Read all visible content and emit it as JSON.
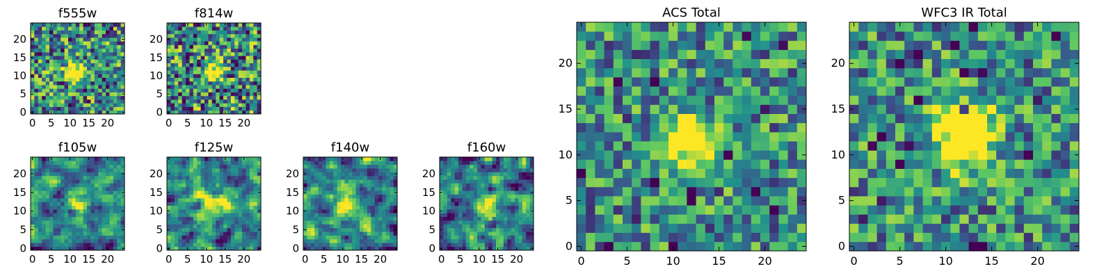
{
  "chart_data": [
    {
      "type": "heatmap",
      "title": "f555w",
      "xticks": [
        "0",
        "5",
        "10",
        "15",
        "20"
      ],
      "yticks": [
        "0",
        "5",
        "10",
        "15",
        "20"
      ],
      "xlim": [
        -0.5,
        24.5
      ],
      "ylim": [
        -0.5,
        24.5
      ],
      "source_peak": [
        11,
        11
      ],
      "source_radius": 1.6,
      "source_strength": 1.0,
      "noise_level": 0.55,
      "smooth": 0,
      "seed": 11
    },
    {
      "type": "heatmap",
      "title": "f814w",
      "xticks": [
        "0",
        "5",
        "10",
        "15",
        "20"
      ],
      "yticks": [
        "0",
        "5",
        "10",
        "15",
        "20"
      ],
      "xlim": [
        -0.5,
        24.5
      ],
      "ylim": [
        -0.5,
        24.5
      ],
      "source_peak": [
        11.5,
        11.5
      ],
      "source_radius": 1.6,
      "source_strength": 0.9,
      "noise_level": 0.6,
      "smooth": 0,
      "seed": 23
    },
    {
      "type": "heatmap",
      "title": "f105w",
      "xticks": [
        "0",
        "5",
        "10",
        "15",
        "20"
      ],
      "yticks": [
        "0",
        "5",
        "10",
        "15",
        "20"
      ],
      "xlim": [
        -0.5,
        24.5
      ],
      "ylim": [
        -0.5,
        24.5
      ],
      "source_peak": [
        11.5,
        12
      ],
      "source_radius": 2.2,
      "source_strength": 0.45,
      "noise_level": 0.5,
      "smooth": 1,
      "seed": 37
    },
    {
      "type": "heatmap",
      "title": "f125w",
      "xticks": [
        "0",
        "5",
        "10",
        "15",
        "20"
      ],
      "yticks": [
        "0",
        "5",
        "10",
        "15",
        "20"
      ],
      "xlim": [
        -0.5,
        24.5
      ],
      "ylim": [
        -0.5,
        24.5
      ],
      "source_peak": [
        12,
        12
      ],
      "source_radius": 2.4,
      "source_strength": 0.5,
      "noise_level": 0.55,
      "smooth": 1,
      "seed": 41
    },
    {
      "type": "heatmap",
      "title": "f140w",
      "xticks": [
        "0",
        "5",
        "10",
        "15",
        "20"
      ],
      "yticks": [
        "0",
        "5",
        "10",
        "15",
        "20"
      ],
      "xlim": [
        -0.5,
        24.5
      ],
      "ylim": [
        -0.5,
        24.5
      ],
      "source_peak": [
        12,
        11
      ],
      "source_radius": 2.4,
      "source_strength": 0.5,
      "noise_level": 0.55,
      "smooth": 1,
      "seed": 53
    },
    {
      "type": "heatmap",
      "title": "f160w",
      "xticks": [
        "0",
        "5",
        "10",
        "15",
        "20"
      ],
      "yticks": [
        "0",
        "5",
        "10",
        "15",
        "20"
      ],
      "xlim": [
        -0.5,
        24.5
      ],
      "ylim": [
        -0.5,
        24.5
      ],
      "source_peak": [
        12,
        11
      ],
      "source_radius": 2.2,
      "source_strength": 0.6,
      "noise_level": 0.5,
      "smooth": 1,
      "seed": 67
    },
    {
      "type": "heatmap",
      "title": "ACS Total",
      "xticks": [
        "0",
        "5",
        "10",
        "15",
        "20"
      ],
      "yticks": [
        "0",
        "5",
        "10",
        "15",
        "20"
      ],
      "xlim": [
        -0.5,
        24.5
      ],
      "ylim": [
        -0.5,
        24.5
      ],
      "source_peak": [
        11.5,
        11.5
      ],
      "source_radius": 1.8,
      "source_strength": 1.0,
      "noise_level": 0.45,
      "smooth": 0,
      "seed": 79
    },
    {
      "type": "heatmap",
      "title": "WFC3 IR Total",
      "xticks": [
        "0",
        "5",
        "10",
        "15",
        "20"
      ],
      "yticks": [
        "0",
        "5",
        "10",
        "15",
        "20"
      ],
      "xlim": [
        -0.5,
        24.5
      ],
      "ylim": [
        -0.5,
        24.5
      ],
      "source_peak": [
        12,
        12
      ],
      "source_radius": 2.2,
      "source_strength": 1.0,
      "noise_level": 0.45,
      "smooth": 0,
      "seed": 97
    }
  ],
  "colormap": [
    "#440154",
    "#3b528b",
    "#21918c",
    "#5ec962",
    "#fde725"
  ]
}
